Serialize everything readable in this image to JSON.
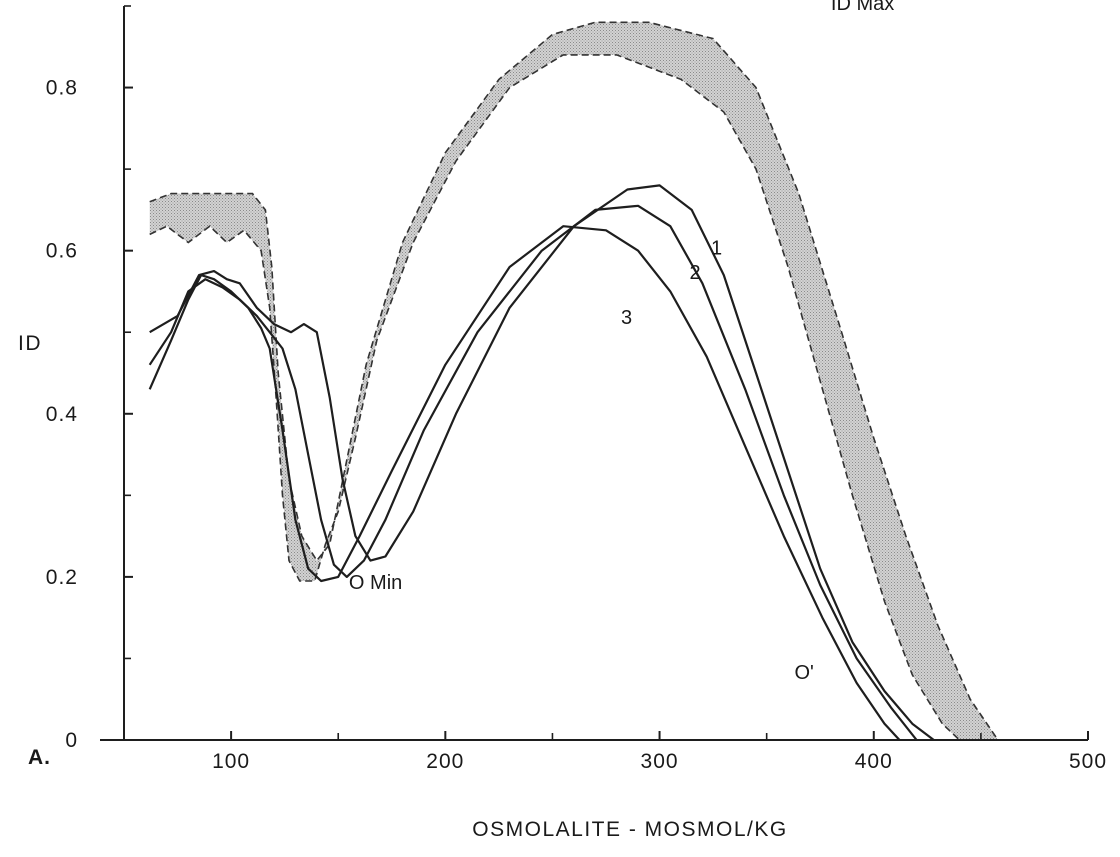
{
  "chart_data": {
    "type": "line",
    "panel_label": "A.",
    "xlabel": "OSMOLALITE - MOSMOL/KG",
    "ylabel": "ID",
    "xlim": [
      50,
      500
    ],
    "ylim": [
      0,
      0.9
    ],
    "grid": false,
    "x_ticks": [
      {
        "value": 100,
        "label": "100"
      },
      {
        "value": 200,
        "label": "200"
      },
      {
        "value": 300,
        "label": "300"
      },
      {
        "value": 400,
        "label": "400"
      },
      {
        "value": 500,
        "label": "500"
      }
    ],
    "y_ticks": [
      {
        "value": 0,
        "label": "0"
      },
      {
        "value": 0.2,
        "label": "0.2"
      },
      {
        "value": 0.4,
        "label": "0.4"
      },
      {
        "value": 0.6,
        "label": "0.6"
      },
      {
        "value": 0.8,
        "label": "0.8"
      }
    ],
    "annotations": [
      {
        "text": "ID Max",
        "x": 380,
        "y": 0.895
      },
      {
        "text": "O Min",
        "x": 155,
        "y": 0.185
      },
      {
        "text": "O'",
        "x": 363,
        "y": 0.075
      },
      {
        "text": "1",
        "x": 324,
        "y": 0.595
      },
      {
        "text": "2",
        "x": 314,
        "y": 0.565
      },
      {
        "text": "3",
        "x": 282,
        "y": 0.51
      }
    ],
    "band": {
      "upper": [
        [
          62,
          0.66
        ],
        [
          72,
          0.67
        ],
        [
          110,
          0.67
        ],
        [
          116,
          0.65
        ],
        [
          119,
          0.58
        ],
        [
          122,
          0.45
        ],
        [
          127,
          0.32
        ],
        [
          133,
          0.25
        ],
        [
          140,
          0.22
        ],
        [
          146,
          0.24
        ],
        [
          153,
          0.33
        ],
        [
          163,
          0.46
        ],
        [
          180,
          0.61
        ],
        [
          200,
          0.72
        ],
        [
          225,
          0.81
        ],
        [
          250,
          0.865
        ],
        [
          270,
          0.88
        ],
        [
          295,
          0.88
        ],
        [
          325,
          0.86
        ],
        [
          345,
          0.8
        ],
        [
          365,
          0.67
        ],
        [
          385,
          0.5
        ],
        [
          400,
          0.37
        ],
        [
          415,
          0.25
        ],
        [
          430,
          0.14
        ],
        [
          445,
          0.05
        ],
        [
          458,
          0.0
        ]
      ],
      "lower": [
        [
          62,
          0.62
        ],
        [
          70,
          0.63
        ],
        [
          80,
          0.61
        ],
        [
          90,
          0.63
        ],
        [
          98,
          0.61
        ],
        [
          106,
          0.625
        ],
        [
          114,
          0.6
        ],
        [
          118,
          0.53
        ],
        [
          121,
          0.42
        ],
        [
          124,
          0.3
        ],
        [
          127,
          0.22
        ],
        [
          132,
          0.195
        ],
        [
          139,
          0.195
        ],
        [
          144,
          0.24
        ],
        [
          150,
          0.28
        ],
        [
          158,
          0.37
        ],
        [
          168,
          0.49
        ],
        [
          185,
          0.61
        ],
        [
          205,
          0.71
        ],
        [
          230,
          0.8
        ],
        [
          255,
          0.84
        ],
        [
          280,
          0.84
        ],
        [
          310,
          0.81
        ],
        [
          330,
          0.77
        ],
        [
          345,
          0.7
        ],
        [
          360,
          0.58
        ],
        [
          375,
          0.44
        ],
        [
          390,
          0.3
        ],
        [
          405,
          0.17
        ],
        [
          418,
          0.08
        ],
        [
          432,
          0.02
        ],
        [
          440,
          0.0
        ]
      ]
    },
    "series": [
      {
        "name": "1",
        "points": [
          [
            62,
            0.5
          ],
          [
            75,
            0.52
          ],
          [
            85,
            0.57
          ],
          [
            92,
            0.575
          ],
          [
            98,
            0.565
          ],
          [
            104,
            0.56
          ],
          [
            112,
            0.53
          ],
          [
            120,
            0.51
          ],
          [
            128,
            0.5
          ],
          [
            134,
            0.51
          ],
          [
            140,
            0.5
          ],
          [
            146,
            0.42
          ],
          [
            152,
            0.32
          ],
          [
            158,
            0.25
          ],
          [
            165,
            0.22
          ],
          [
            172,
            0.225
          ],
          [
            185,
            0.28
          ],
          [
            205,
            0.4
          ],
          [
            230,
            0.53
          ],
          [
            260,
            0.63
          ],
          [
            285,
            0.675
          ],
          [
            300,
            0.68
          ],
          [
            315,
            0.65
          ],
          [
            330,
            0.57
          ],
          [
            345,
            0.45
          ],
          [
            360,
            0.33
          ],
          [
            375,
            0.21
          ],
          [
            390,
            0.12
          ],
          [
            405,
            0.06
          ],
          [
            418,
            0.02
          ],
          [
            428,
            0.0
          ]
        ]
      },
      {
        "name": "2",
        "points": [
          [
            62,
            0.46
          ],
          [
            72,
            0.5
          ],
          [
            80,
            0.55
          ],
          [
            88,
            0.565
          ],
          [
            96,
            0.555
          ],
          [
            104,
            0.54
          ],
          [
            112,
            0.52
          ],
          [
            118,
            0.5
          ],
          [
            124,
            0.48
          ],
          [
            130,
            0.43
          ],
          [
            136,
            0.35
          ],
          [
            142,
            0.27
          ],
          [
            148,
            0.215
          ],
          [
            154,
            0.2
          ],
          [
            162,
            0.22
          ],
          [
            172,
            0.27
          ],
          [
            190,
            0.38
          ],
          [
            215,
            0.5
          ],
          [
            245,
            0.6
          ],
          [
            270,
            0.65
          ],
          [
            290,
            0.655
          ],
          [
            305,
            0.63
          ],
          [
            320,
            0.56
          ],
          [
            340,
            0.43
          ],
          [
            358,
            0.3
          ],
          [
            375,
            0.19
          ],
          [
            392,
            0.1
          ],
          [
            408,
            0.04
          ],
          [
            420,
            0.0
          ]
        ]
      },
      {
        "name": "3",
        "points": [
          [
            62,
            0.43
          ],
          [
            72,
            0.49
          ],
          [
            80,
            0.54
          ],
          [
            86,
            0.57
          ],
          [
            92,
            0.565
          ],
          [
            100,
            0.55
          ],
          [
            108,
            0.53
          ],
          [
            114,
            0.505
          ],
          [
            118,
            0.48
          ],
          [
            124,
            0.38
          ],
          [
            130,
            0.27
          ],
          [
            136,
            0.21
          ],
          [
            142,
            0.195
          ],
          [
            150,
            0.2
          ],
          [
            160,
            0.25
          ],
          [
            175,
            0.33
          ],
          [
            200,
            0.46
          ],
          [
            230,
            0.58
          ],
          [
            255,
            0.63
          ],
          [
            275,
            0.625
          ],
          [
            290,
            0.6
          ],
          [
            305,
            0.55
          ],
          [
            322,
            0.47
          ],
          [
            340,
            0.36
          ],
          [
            358,
            0.25
          ],
          [
            376,
            0.15
          ],
          [
            392,
            0.07
          ],
          [
            405,
            0.02
          ],
          [
            412,
            0.0
          ]
        ]
      }
    ],
    "band_color": "#b3b3b3",
    "line_color": "#1e1e1e"
  }
}
